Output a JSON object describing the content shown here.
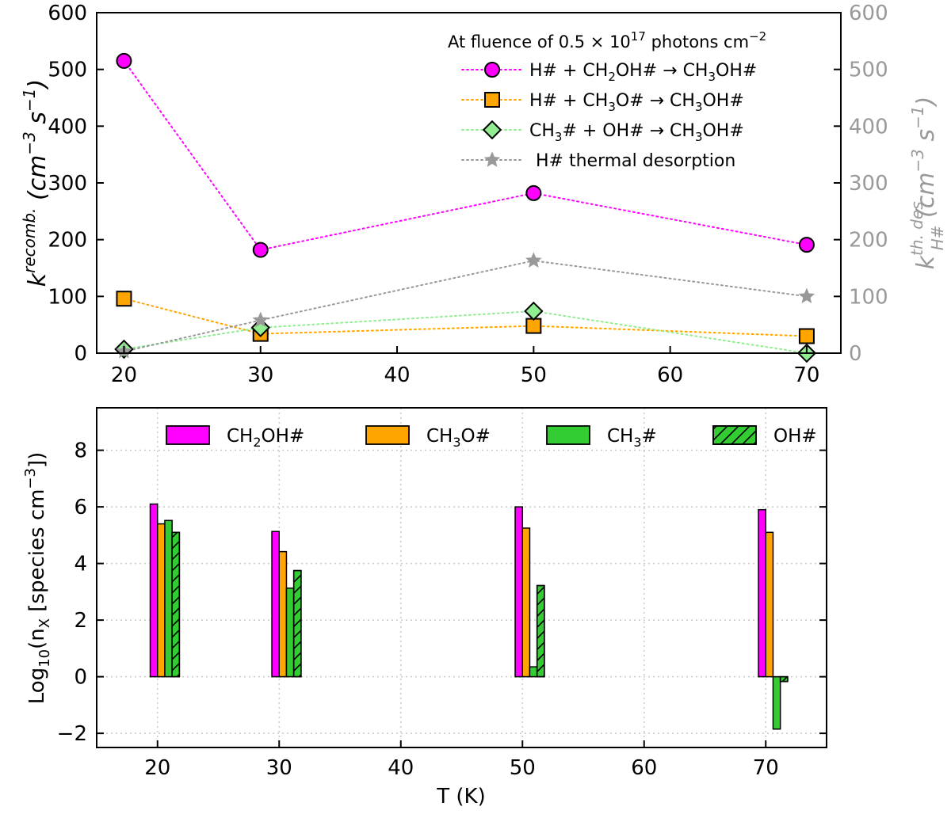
{
  "chart_data": [
    {
      "type": "line",
      "title": "",
      "x": [
        20,
        30,
        50,
        70
      ],
      "xlim": [
        18,
        72.5
      ],
      "xticks": [
        20,
        30,
        40,
        50,
        60,
        70
      ],
      "y_left": {
        "label": "k",
        "label_sup": "recomb.",
        "label_units": "(cm",
        "ylim": [
          0,
          600
        ],
        "ticks": [
          0,
          100,
          200,
          300,
          400,
          500,
          600
        ]
      },
      "y_right": {
        "label": "k",
        "label_sup": "th. des",
        "label_sub": "H#",
        "label_units": "(cm",
        "ylim": [
          0,
          600
        ],
        "ticks": [
          0,
          100,
          200,
          300,
          400,
          500,
          600
        ],
        "color": "#999999"
      },
      "legend_title": {
        "prefix": "At fluence of 0.5 × 10",
        "exp": "17",
        "suffix": " photons cm",
        "exp2": "−2"
      },
      "series": [
        {
          "name": "H# + CH2OH# → CH3OH#",
          "name_parts": [
            "H# + CH",
            "2",
            "OH# → CH",
            "3",
            "OH#"
          ],
          "values": [
            515,
            182,
            282,
            191
          ],
          "color": "#ff00ff",
          "marker": "circle",
          "axis": "left"
        },
        {
          "name": "H# + CH3O# → CH3OH#",
          "name_parts": [
            "H# + CH",
            "3",
            "O# → CH",
            "3",
            "OH#"
          ],
          "values": [
            96,
            34,
            48,
            30
          ],
          "color": "#ffa500",
          "marker": "square",
          "axis": "left"
        },
        {
          "name": "CH3# + OH# → CH3OH#",
          "name_parts": [
            "CH",
            "3",
            "# + OH# → CH",
            "3",
            "OH#"
          ],
          "values": [
            7,
            45,
            74,
            0
          ],
          "color": "#90ee90",
          "marker": "diamond",
          "axis": "left"
        },
        {
          "name": "H# thermal desorption",
          "name_parts": [
            "H# thermal desorption"
          ],
          "values": [
            3,
            58,
            163,
            100
          ],
          "color": "#999999",
          "marker": "star",
          "axis": "right"
        }
      ]
    },
    {
      "type": "bar",
      "categories": [
        20,
        30,
        50,
        70
      ],
      "xlim": [
        15,
        75
      ],
      "xticks": [
        20,
        30,
        40,
        50,
        60,
        70
      ],
      "xlabel": "T (K)",
      "ylabel": {
        "prefix": "Log",
        "sub": "10",
        "mid": "(n",
        "sub2": "X",
        "suffix": " [species cm",
        "exp": "−3",
        "end": "])"
      },
      "ylim": [
        -2.5,
        9.5
      ],
      "yticks": [
        -2,
        0,
        2,
        4,
        6,
        8
      ],
      "series": [
        {
          "name": "CH2OH#",
          "name_parts": [
            "CH",
            "2",
            "OH#"
          ],
          "values": [
            6.1,
            5.13,
            6.0,
            5.9
          ],
          "color": "#ff00ff",
          "hatch": false
        },
        {
          "name": "CH3O#",
          "name_parts": [
            "CH",
            "3",
            "O#"
          ],
          "values": [
            5.4,
            4.42,
            5.25,
            5.1
          ],
          "color": "#ffa500",
          "hatch": false
        },
        {
          "name": "CH3#",
          "name_parts": [
            "CH",
            "3",
            "#"
          ],
          "values": [
            5.52,
            3.13,
            0.35,
            -1.85
          ],
          "color": "#33cc33",
          "hatch": false
        },
        {
          "name": "OH#",
          "name_parts": [
            "OH#"
          ],
          "values": [
            5.1,
            3.75,
            3.22,
            -0.17
          ],
          "color": "#33cc33",
          "hatch": true
        }
      ]
    }
  ]
}
